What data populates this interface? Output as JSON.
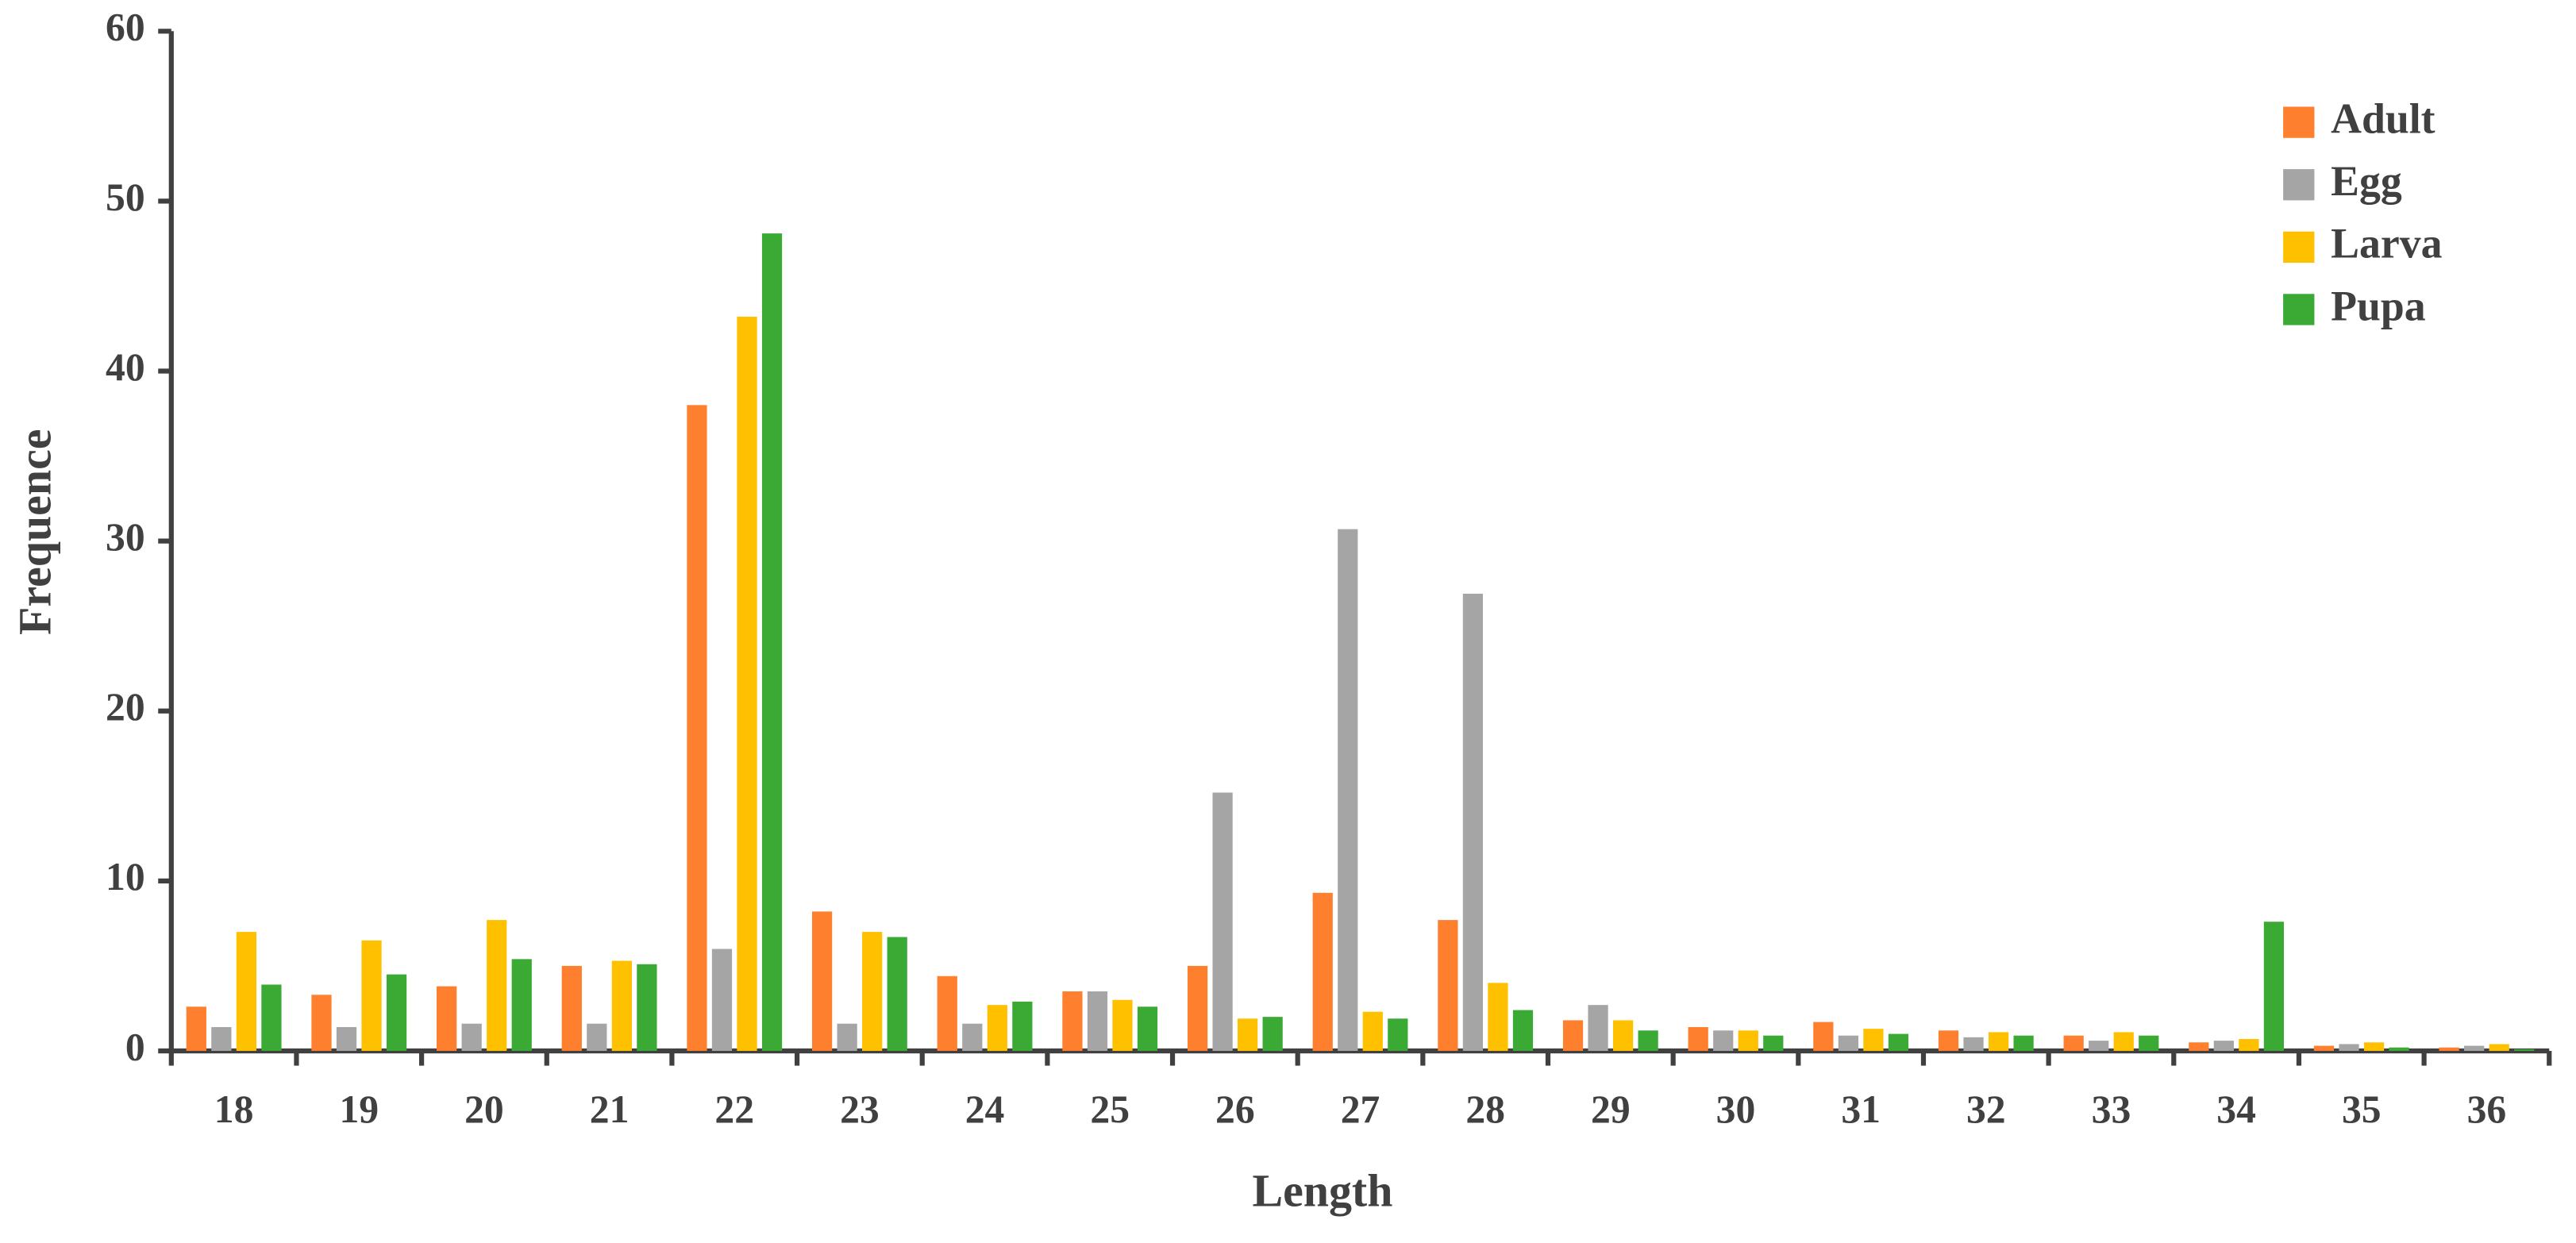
{
  "chart_data": {
    "type": "bar",
    "x_label": "Length",
    "y_label": "Frequence",
    "categories": [
      "18",
      "19",
      "20",
      "21",
      "22",
      "23",
      "24",
      "25",
      "26",
      "27",
      "28",
      "29",
      "30",
      "31",
      "32",
      "33",
      "34",
      "35",
      "36"
    ],
    "series": [
      {
        "name": "Adult",
        "color": "#fe7f2d",
        "values": [
          2.6,
          3.3,
          3.8,
          5.0,
          38.0,
          8.2,
          4.4,
          3.5,
          5.0,
          9.3,
          7.7,
          1.8,
          1.4,
          1.7,
          1.2,
          0.9,
          0.5,
          0.3,
          0.2
        ]
      },
      {
        "name": "Egg",
        "color": "#a5a5a5",
        "values": [
          1.4,
          1.4,
          1.6,
          1.6,
          6.0,
          1.6,
          1.6,
          3.5,
          15.2,
          30.7,
          26.9,
          2.7,
          1.2,
          0.9,
          0.8,
          0.6,
          0.6,
          0.4,
          0.3
        ]
      },
      {
        "name": "Larva",
        "color": "#ffc000",
        "values": [
          7.0,
          6.5,
          7.7,
          5.3,
          43.2,
          7.0,
          2.7,
          3.0,
          1.9,
          2.3,
          4.0,
          1.8,
          1.2,
          1.3,
          1.1,
          1.1,
          0.7,
          0.5,
          0.4
        ]
      },
      {
        "name": "Pupa",
        "color": "#3aaa35",
        "values": [
          3.9,
          4.5,
          5.4,
          5.1,
          48.1,
          6.7,
          2.9,
          2.6,
          2.0,
          1.9,
          2.4,
          1.2,
          0.9,
          1.0,
          0.9,
          0.9,
          7.6,
          0.2,
          0.1
        ]
      }
    ],
    "ylim": [
      0,
      60
    ],
    "yticks": [
      0,
      10,
      20,
      30,
      40,
      50,
      60
    ],
    "legend": "upper right",
    "grid": false
  }
}
